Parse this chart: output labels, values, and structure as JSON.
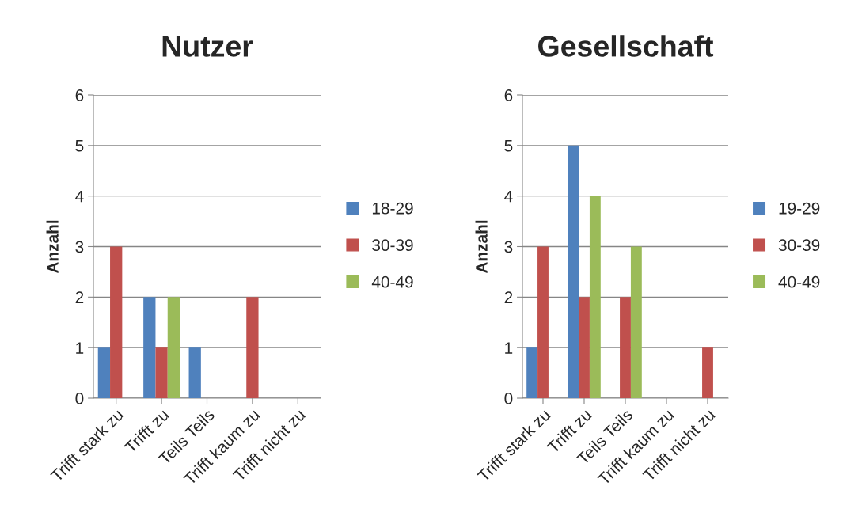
{
  "chart_data": [
    {
      "type": "bar",
      "title": "Nutzer",
      "ylabel": "Anzahl",
      "categories": [
        "Trifft stark zu",
        "Trifft zu",
        "Teils Teils",
        "Trifft kaum zu",
        "Trifft nicht zu"
      ],
      "series": [
        {
          "name": "18-29",
          "color": "#4f81bd",
          "values": [
            1,
            2,
            1,
            0,
            0
          ]
        },
        {
          "name": "30-39",
          "color": "#c0504d",
          "values": [
            3,
            1,
            0,
            2,
            0
          ]
        },
        {
          "name": "40-49",
          "color": "#9bbb59",
          "values": [
            0,
            2,
            0,
            0,
            0
          ]
        }
      ],
      "ylim": [
        0,
        6
      ],
      "yticks": [
        0,
        1,
        2,
        3,
        4,
        5,
        6
      ],
      "grid": "y",
      "legend": "right"
    },
    {
      "type": "bar",
      "title": "Gesellschaft",
      "ylabel": "Anzahl",
      "categories": [
        "Trifft stark zu",
        "Trifft zu",
        "Teils Teils",
        "Trifft kaum zu",
        "Trifft nicht zu"
      ],
      "series": [
        {
          "name": "19-29",
          "color": "#4f81bd",
          "values": [
            1,
            5,
            0,
            0,
            0
          ]
        },
        {
          "name": "30-39",
          "color": "#c0504d",
          "values": [
            3,
            2,
            2,
            0,
            1
          ]
        },
        {
          "name": "40-49",
          "color": "#9bbb59",
          "values": [
            0,
            4,
            3,
            0,
            0
          ]
        }
      ],
      "ylim": [
        0,
        6
      ],
      "yticks": [
        0,
        1,
        2,
        3,
        4,
        5,
        6
      ],
      "grid": "y",
      "legend": "right"
    }
  ]
}
